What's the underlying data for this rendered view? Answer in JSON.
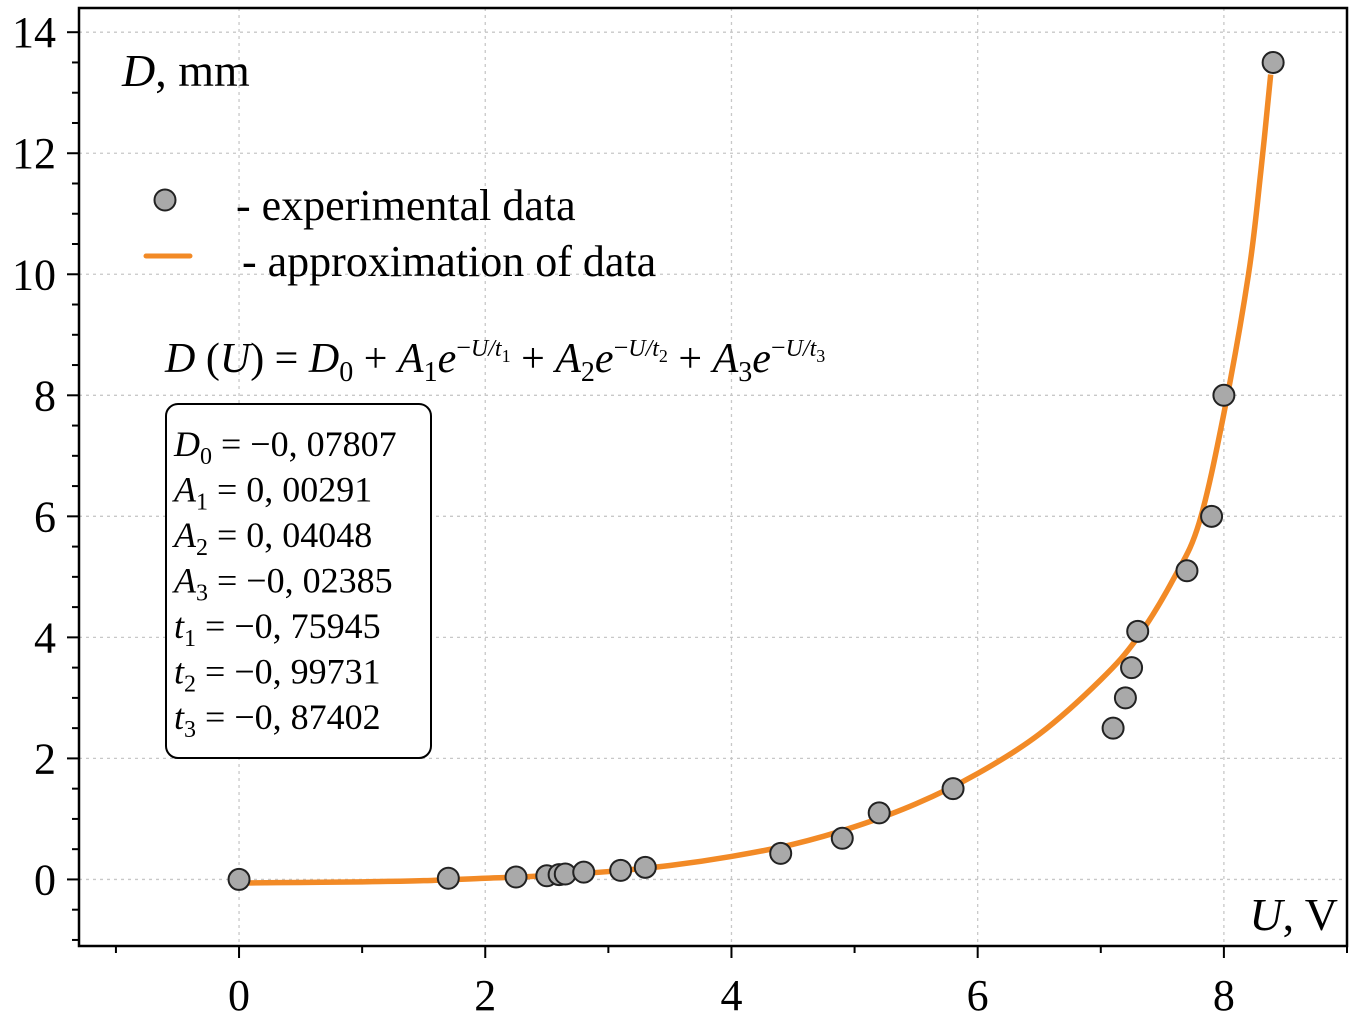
{
  "colors": {
    "fit_line": "#F28A26",
    "marker_fill": "#A9A9A9",
    "marker_edge": "#222222",
    "axis": "#000000"
  },
  "chart_data": {
    "type": "scatter",
    "title": "",
    "xlabel_var": "U",
    "xlabel_unit": ", V",
    "ylabel_var": "D",
    "ylabel_unit": ", mm",
    "xlim": [
      -1.3,
      9.0
    ],
    "ylim": [
      -1.1,
      14.4
    ],
    "x_ticks": [
      0,
      2,
      4,
      6,
      8
    ],
    "y_ticks": [
      0,
      2,
      4,
      6,
      8,
      10,
      12,
      14
    ],
    "grid": true,
    "series": [
      {
        "name": "experimental data",
        "label": "- experimental data",
        "kind": "points",
        "x": [
          0,
          1.7,
          2.25,
          2.5,
          2.6,
          2.65,
          2.8,
          3.1,
          3.3,
          4.4,
          4.9,
          5.2,
          5.8,
          7.1,
          7.2,
          7.25,
          7.3,
          7.7,
          7.9,
          8.0,
          8.4
        ],
        "y": [
          0,
          0.02,
          0.04,
          0.06,
          0.08,
          0.09,
          0.12,
          0.15,
          0.2,
          0.43,
          0.68,
          1.1,
          1.5,
          2.5,
          3.0,
          3.5,
          4.1,
          5.1,
          6.0,
          8.0,
          13.5
        ]
      },
      {
        "name": "approximation of data",
        "label": "- approximation of data",
        "kind": "line",
        "x": [
          0,
          0.5,
          1.0,
          1.5,
          2.0,
          2.5,
          3.0,
          3.5,
          4.0,
          4.5,
          5.0,
          5.5,
          6.0,
          6.5,
          7.0,
          7.3,
          7.6,
          7.8,
          8.0,
          8.2,
          8.3,
          8.38
        ],
        "y": [
          -0.06,
          -0.05,
          -0.04,
          -0.02,
          0.02,
          0.06,
          0.13,
          0.23,
          0.38,
          0.58,
          0.87,
          1.25,
          1.75,
          2.4,
          3.3,
          4.0,
          5.0,
          5.9,
          7.7,
          10.0,
          11.7,
          13.3
        ]
      }
    ],
    "equation": "D (U) = D₀ + A₁e^(−U/t₁) + A₂e^(−U/t₂) + A₃e^(−U/t₃)",
    "parameters": [
      {
        "sym": "D",
        "sub": "0",
        "value": "−0, 07807"
      },
      {
        "sym": "A",
        "sub": "1",
        "value": "0, 00291"
      },
      {
        "sym": "A",
        "sub": "2",
        "value": "0, 04048"
      },
      {
        "sym": "A",
        "sub": "3",
        "value": "−0, 02385"
      },
      {
        "sym": "t",
        "sub": "1",
        "value": "−0, 75945"
      },
      {
        "sym": "t",
        "sub": "2",
        "value": "−0, 99731"
      },
      {
        "sym": "t",
        "sub": "3",
        "value": "−0, 87402"
      }
    ]
  }
}
